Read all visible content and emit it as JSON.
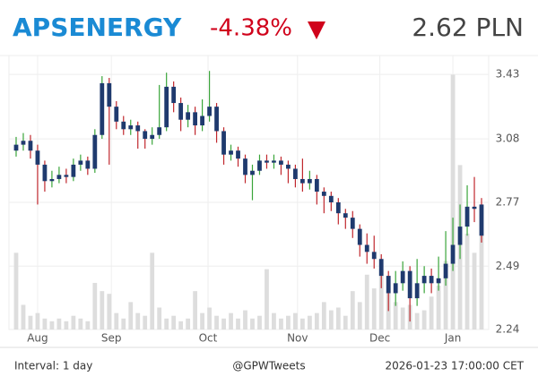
{
  "chart_data": {
    "type": "candlestick",
    "title": "APSENERGY",
    "change": "-4.38%",
    "price": "2.62 PLN",
    "interval": "Interval: 1 day",
    "source": "@GPWTweets",
    "timestamp": "2026-01-23 17:00:00 CET",
    "log_scale": true,
    "grid": true,
    "up_color": "#3aa53a",
    "down_color": "#c0272d",
    "body_color": "#1f3a6e",
    "volume_color": "#dddddd",
    "x": [
      0,
      1,
      2,
      3,
      4,
      5,
      6,
      7,
      8,
      9,
      10,
      11,
      12,
      13,
      14,
      15,
      16,
      17,
      18,
      19,
      20,
      21,
      22,
      23,
      24,
      25,
      26,
      27,
      28,
      29,
      30,
      31,
      32,
      33,
      34,
      35,
      36,
      37,
      38,
      39,
      40,
      41,
      42,
      43,
      44,
      45,
      46,
      47,
      48,
      49,
      50,
      51,
      52,
      53,
      54,
      55,
      56,
      57,
      58,
      59,
      60,
      61,
      62,
      63,
      64,
      65
    ],
    "open": [
      3.02,
      3.05,
      3.07,
      3.02,
      2.95,
      2.87,
      2.88,
      2.9,
      2.89,
      2.95,
      2.97,
      2.93,
      3.1,
      3.38,
      3.25,
      3.17,
      3.13,
      3.15,
      3.12,
      3.08,
      3.1,
      3.14,
      3.36,
      3.27,
      3.18,
      3.22,
      3.15,
      3.2,
      3.25,
      3.12,
      3.0,
      3.02,
      2.98,
      2.9,
      2.92,
      2.97,
      2.96,
      2.97,
      2.95,
      2.93,
      2.88,
      2.86,
      2.88,
      2.82,
      2.8,
      2.77,
      2.72,
      2.7,
      2.65,
      2.58,
      2.55,
      2.52,
      2.45,
      2.38,
      2.42,
      2.47,
      2.36,
      2.42,
      2.45,
      2.42,
      2.44,
      2.5,
      2.58,
      2.66,
      2.75,
      2.76
    ],
    "high": [
      3.09,
      3.11,
      3.1,
      3.05,
      2.97,
      2.92,
      2.94,
      2.93,
      2.98,
      3.0,
      2.99,
      3.13,
      3.42,
      3.41,
      3.28,
      3.2,
      3.18,
      3.17,
      3.13,
      3.14,
      3.37,
      3.44,
      3.39,
      3.3,
      3.26,
      3.25,
      3.29,
      3.45,
      3.27,
      3.14,
      3.05,
      3.04,
      3.0,
      2.95,
      3.0,
      3.0,
      3.0,
      2.99,
      2.97,
      2.95,
      2.98,
      2.92,
      2.9,
      2.84,
      2.82,
      2.79,
      2.74,
      2.73,
      2.67,
      2.63,
      2.62,
      2.54,
      2.47,
      2.47,
      2.51,
      2.49,
      2.52,
      2.49,
      2.48,
      2.53,
      2.64,
      2.7,
      2.76,
      2.85,
      2.89,
      2.79
    ],
    "low": [
      2.99,
      3.02,
      2.98,
      2.76,
      2.82,
      2.84,
      2.86,
      2.86,
      2.87,
      2.92,
      2.9,
      2.91,
      3.08,
      2.95,
      3.13,
      3.1,
      3.1,
      3.03,
      3.03,
      3.05,
      3.08,
      3.12,
      3.22,
      3.12,
      3.14,
      3.1,
      3.12,
      3.17,
      3.06,
      2.95,
      2.97,
      2.94,
      2.86,
      2.78,
      2.9,
      2.93,
      2.93,
      2.9,
      2.86,
      2.84,
      2.82,
      2.83,
      2.76,
      2.72,
      2.73,
      2.67,
      2.65,
      2.61,
      2.53,
      2.5,
      2.48,
      2.4,
      2.31,
      2.33,
      2.39,
      2.27,
      2.33,
      2.38,
      2.38,
      2.39,
      2.41,
      2.47,
      2.52,
      2.62,
      2.68,
      2.59
    ],
    "close": [
      3.05,
      3.07,
      3.02,
      2.95,
      2.87,
      2.88,
      2.9,
      2.89,
      2.95,
      2.97,
      2.93,
      3.1,
      3.38,
      3.25,
      3.17,
      3.13,
      3.15,
      3.12,
      3.08,
      3.1,
      3.14,
      3.36,
      3.27,
      3.18,
      3.22,
      3.15,
      3.2,
      3.25,
      3.12,
      3.0,
      3.02,
      2.98,
      2.9,
      2.92,
      2.97,
      2.96,
      2.97,
      2.95,
      2.93,
      2.88,
      2.86,
      2.88,
      2.82,
      2.8,
      2.77,
      2.72,
      2.7,
      2.65,
      2.58,
      2.55,
      2.52,
      2.45,
      2.38,
      2.42,
      2.47,
      2.36,
      2.42,
      2.45,
      2.42,
      2.44,
      2.5,
      2.58,
      2.66,
      2.75,
      2.74,
      2.62
    ],
    "volume": [
      28,
      9,
      5,
      6,
      4,
      3,
      4,
      3,
      5,
      4,
      3,
      17,
      14,
      13,
      6,
      4,
      10,
      6,
      5,
      28,
      8,
      4,
      5,
      3,
      4,
      14,
      6,
      8,
      5,
      4,
      6,
      4,
      7,
      4,
      5,
      22,
      6,
      4,
      5,
      6,
      4,
      5,
      6,
      10,
      7,
      8,
      5,
      14,
      10,
      20,
      15,
      22,
      14,
      10,
      8,
      9,
      6,
      7,
      12,
      16,
      25,
      93,
      60,
      35,
      28,
      45
    ],
    "vlim": [
      0,
      100
    ],
    "xlim": [
      -1,
      66
    ],
    "xticks": [
      {
        "value": 3,
        "label": "Aug"
      },
      {
        "value": 13.3,
        "label": "Sep"
      },
      {
        "value": 26.8,
        "label": "Oct"
      },
      {
        "value": 39.3,
        "label": "Nov"
      },
      {
        "value": 50.8,
        "label": "Dec"
      },
      {
        "value": 61,
        "label": "Jan"
      }
    ],
    "ylim": [
      2.24,
      3.54
    ],
    "yticks": [
      2.24,
      2.49,
      2.77,
      3.08,
      3.43
    ]
  }
}
